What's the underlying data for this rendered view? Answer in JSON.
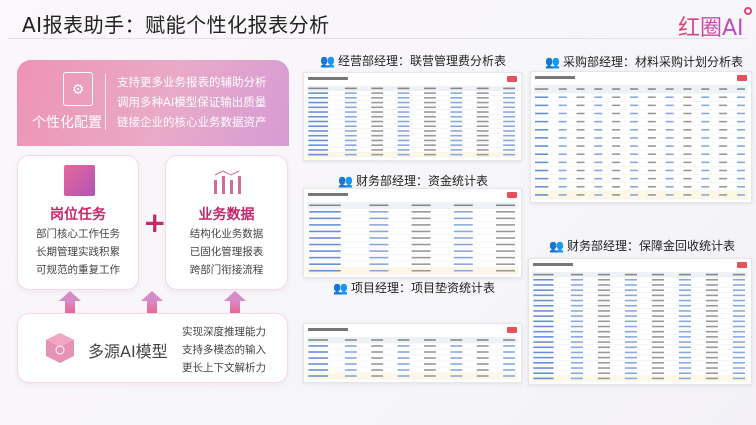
{
  "title": "AI报表助手：赋能个性化报表分析",
  "logo": {
    "text": "红圈AI"
  },
  "banner": {
    "label": "个性化配置",
    "icon": "document-gear-icon",
    "lines": [
      "支持更多业务报表的辅助分析",
      "调用多种AI模型保证输出质量",
      "链接企业的核心业务数据资产"
    ]
  },
  "job_tasks": {
    "title": "岗位任务",
    "icon": "task-board-icon",
    "lines": [
      "部门核心工作任务",
      "长期管理实践积累",
      "可规范的重复工作"
    ]
  },
  "plus": "+",
  "business_data": {
    "title": "业务数据",
    "icon": "bar-chart-icon",
    "lines": [
      "结构化业务数据",
      "已固化管理报表",
      "跨部门衔接流程"
    ]
  },
  "ai_model": {
    "title": "多源AI模型",
    "icon": "cube-network-icon",
    "lines": [
      "实现深度推理能力",
      "支持多模态的输入",
      "更长上下文解析力"
    ]
  },
  "reports": [
    {
      "heading": "经营部经理：联营管理费分析表"
    },
    {
      "heading": "采购部经理：材料采购计划分析表"
    },
    {
      "heading": "财务部经理：资金统计表"
    },
    {
      "heading": "项目经理：项目垫资统计表"
    },
    {
      "heading": "财务部经理：保障金回收统计表"
    }
  ],
  "colors": {
    "accent": "#c4286a",
    "banner": "#ee93b3",
    "table_button": "#e8505b"
  }
}
